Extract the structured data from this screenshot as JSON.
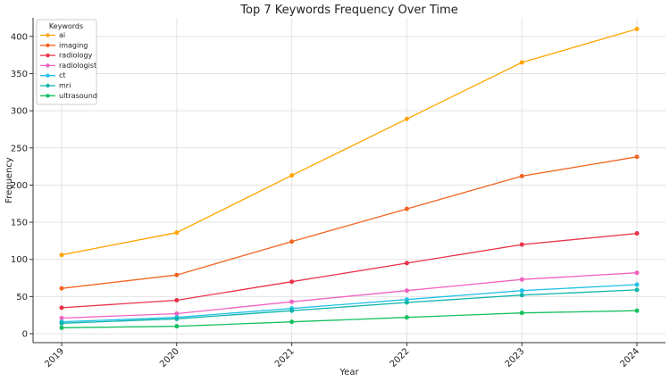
{
  "chart_data": {
    "type": "line",
    "title": "Top 7 Keywords Frequency Over Time",
    "xlabel": "Year",
    "ylabel": "Frequency",
    "categories": [
      "2019",
      "2020",
      "2021",
      "2022",
      "2023",
      "2024"
    ],
    "ylim": [
      -12,
      425
    ],
    "yticks": [
      0,
      50,
      100,
      150,
      200,
      250,
      300,
      350,
      400
    ],
    "grid": true,
    "legend": {
      "title": "Keywords",
      "placement": "top-left"
    },
    "series": [
      {
        "name": "ai",
        "color": "#ffa500",
        "values": [
          106,
          136,
          213,
          289,
          365,
          410
        ]
      },
      {
        "name": "imaging",
        "color": "#f26522",
        "values": [
          61,
          79,
          124,
          168,
          212,
          238
        ]
      },
      {
        "name": "radiology",
        "color": "#e8334a",
        "values": [
          35,
          45,
          70,
          95,
          120,
          135
        ]
      },
      {
        "name": "radiologist",
        "color": "#f062c0",
        "values": [
          21,
          27,
          43,
          58,
          73,
          82
        ]
      },
      {
        "name": "ct",
        "color": "#22c0e8",
        "values": [
          16,
          22,
          34,
          46,
          58,
          66
        ]
      },
      {
        "name": "mri",
        "color": "#10b5a8",
        "values": [
          14,
          20,
          31,
          42,
          52,
          59
        ]
      },
      {
        "name": "ultrasound",
        "color": "#16c060",
        "values": [
          8,
          10,
          16,
          22,
          28,
          31
        ]
      }
    ]
  }
}
